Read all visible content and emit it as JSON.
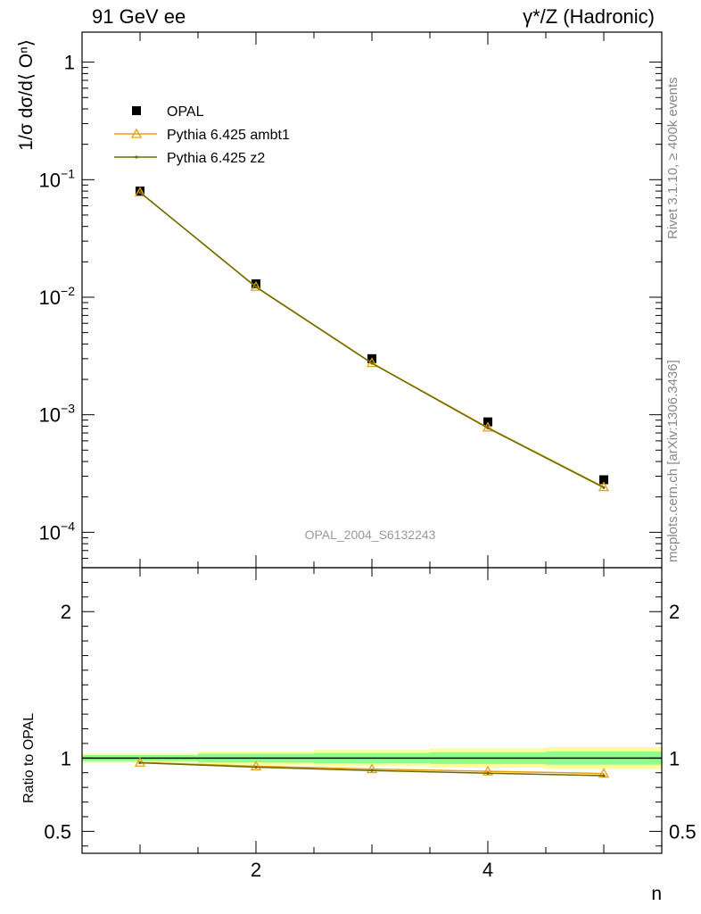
{
  "header": {
    "left_title": "91 GeV ee",
    "right_title": "γ*/Z (Hadronic)"
  },
  "side_text": {
    "rivet": "Rivet 3.1.10, ≥ 400k events",
    "mcplots": "mcplots.cern.ch [arXiv:1306.3436]"
  },
  "watermark": "OPAL_2004_S6132243",
  "chart_data": [
    {
      "type": "scatter",
      "panel": "main",
      "ylabel": "1/σ dσ/d⟨ Oⁿ⟩",
      "yscale": "log",
      "ylim": [
        5e-05,
        1.8
      ],
      "xlim": [
        0.5,
        5.5
      ],
      "y_ticks": [
        {
          "value": 1,
          "label": "1"
        },
        {
          "value": 0.1,
          "label": "10",
          "exp": "−1"
        },
        {
          "value": 0.01,
          "label": "10",
          "exp": "−2"
        },
        {
          "value": 0.001,
          "label": "10",
          "exp": "−3"
        },
        {
          "value": 0.0001,
          "label": "10",
          "exp": "−4"
        }
      ],
      "x": [
        1,
        2,
        3,
        4,
        5
      ],
      "series": [
        {
          "name": "OPAL",
          "style": "data",
          "color": "#000000",
          "values": [
            0.08,
            0.013,
            0.003,
            0.00087,
            0.00028
          ]
        },
        {
          "name": "Pythia 6.425 ambt1",
          "style": "triangle",
          "color": "#e8a010",
          "values": [
            0.078,
            0.0123,
            0.00276,
            0.00078,
            0.000243
          ]
        },
        {
          "name": "Pythia 6.425 z2",
          "style": "dot",
          "color": "#6b6b00",
          "values": [
            0.078,
            0.0122,
            0.00274,
            0.00077,
            0.00024
          ]
        }
      ],
      "legend_position": "top-left"
    },
    {
      "type": "line",
      "panel": "ratio",
      "ylabel": "Ratio to OPAL",
      "xlabel": "n",
      "ylim": [
        0.35,
        2.3
      ],
      "xlim": [
        0.5,
        5.5
      ],
      "y_ticks": [
        {
          "value": 2,
          "label": "2"
        },
        {
          "value": 1,
          "label": "1"
        },
        {
          "value": 0.5,
          "label": "0.5"
        }
      ],
      "x_ticks": [
        {
          "value": 2,
          "label": "2"
        },
        {
          "value": 4,
          "label": "4"
        }
      ],
      "x": [
        1,
        2,
        3,
        4,
        5
      ],
      "band_stat": [
        0.02,
        0.03,
        0.035,
        0.04,
        0.045
      ],
      "band_total": [
        0.03,
        0.045,
        0.055,
        0.065,
        0.075
      ],
      "band_colors": {
        "stat": "#8cff8c",
        "total": "#ffff99"
      },
      "series": [
        {
          "name": "Pythia 6.425 ambt1",
          "style": "triangle",
          "color": "#e8a010",
          "values": [
            0.97,
            0.945,
            0.925,
            0.91,
            0.895
          ]
        },
        {
          "name": "Pythia 6.425 z2",
          "style": "dot",
          "color": "#6b6b00",
          "values": [
            0.968,
            0.938,
            0.915,
            0.897,
            0.88
          ]
        }
      ]
    }
  ]
}
